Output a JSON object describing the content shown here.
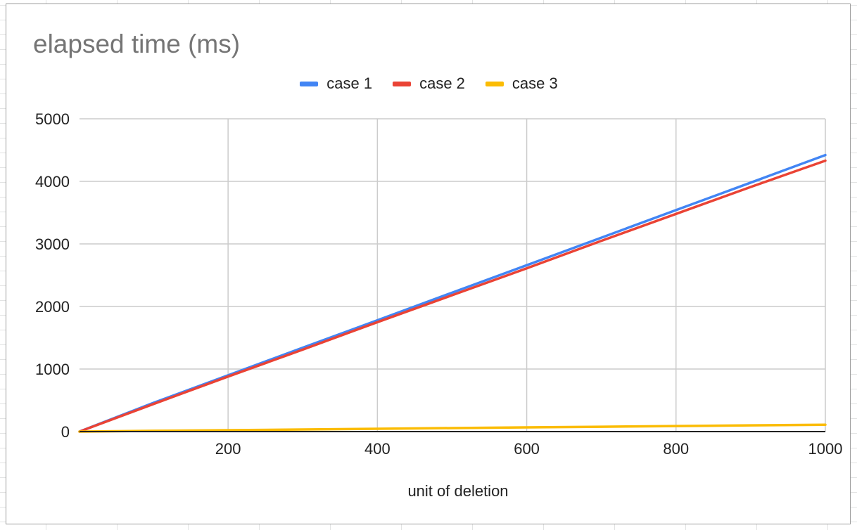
{
  "chart_data": {
    "type": "line",
    "title": "elapsed time (ms)",
    "xlabel": "unit of deletion",
    "ylabel": "",
    "xlim": [
      1,
      1000
    ],
    "ylim": [
      0,
      5000
    ],
    "x_ticks": [
      200,
      400,
      600,
      800,
      1000
    ],
    "y_ticks": [
      0,
      1000,
      2000,
      3000,
      4000,
      5000
    ],
    "grid": true,
    "legend_position": "top",
    "series": [
      {
        "name": "case 1",
        "color": "#4285f4",
        "x": [
          1,
          100,
          200,
          300,
          400,
          500,
          600,
          700,
          800,
          900,
          1000
        ],
        "y": [
          0,
          460,
          900,
          1340,
          1780,
          2220,
          2660,
          3100,
          3540,
          3980,
          4420
        ]
      },
      {
        "name": "case 2",
        "color": "#ea4335",
        "x": [
          1,
          100,
          200,
          300,
          400,
          500,
          600,
          700,
          800,
          900,
          1000
        ],
        "y": [
          0,
          440,
          880,
          1310,
          1750,
          2180,
          2610,
          3050,
          3480,
          3910,
          4330
        ]
      },
      {
        "name": "case 3",
        "color": "#fbbc04",
        "x": [
          1,
          100,
          200,
          300,
          400,
          500,
          600,
          700,
          800,
          900,
          1000
        ],
        "y": [
          0,
          12,
          23,
          34,
          45,
          56,
          67,
          78,
          89,
          100,
          110
        ]
      }
    ]
  }
}
